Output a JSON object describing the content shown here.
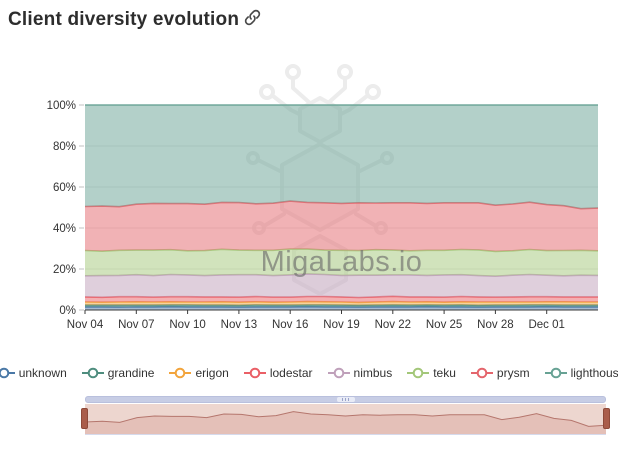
{
  "header": {
    "title": "Client diversity evolution",
    "link_icon": "link-icon"
  },
  "watermark": "MigaLabs.io",
  "colors": {
    "axis_line": "#3a3a3a",
    "grid_line": "#e6e6e6",
    "tick_label": "#333333",
    "scrollbar": "#c7cde5",
    "navigator_bg": "#edd6cf",
    "navigator_line": "#b5766d",
    "navigator_handle": "#aa5d4b",
    "logo": "#ececec"
  },
  "chart_data": {
    "type": "area",
    "stacking": "percent",
    "title": "Client diversity evolution",
    "xlabel": "",
    "ylabel": "",
    "ylim": [
      0,
      100
    ],
    "y_tick_labels": [
      "0%",
      "20%",
      "40%",
      "60%",
      "80%",
      "100%"
    ],
    "grid": "horizontal",
    "legend_position": "bottom",
    "x": [
      "Nov 04",
      "Nov 05",
      "Nov 06",
      "Nov 07",
      "Nov 08",
      "Nov 09",
      "Nov 10",
      "Nov 11",
      "Nov 12",
      "Nov 13",
      "Nov 14",
      "Nov 15",
      "Nov 16",
      "Nov 17",
      "Nov 18",
      "Nov 19",
      "Nov 20",
      "Nov 21",
      "Nov 22",
      "Nov 23",
      "Nov 24",
      "Nov 25",
      "Nov 26",
      "Nov 27",
      "Nov 28",
      "Nov 29",
      "Nov 30",
      "Dec 01",
      "Dec 02",
      "Dec 03",
      "Dec 04"
    ],
    "x_tick_every": 3,
    "x_tick_labels": [
      "Nov 04",
      "Nov 07",
      "Nov 10",
      "Nov 13",
      "Nov 16",
      "Nov 19",
      "Nov 22",
      "Nov 25",
      "Nov 28",
      "Dec 01"
    ],
    "series": [
      {
        "name": "unknown",
        "color": "#4a78a6",
        "values": [
          1.5,
          1.5,
          1.4,
          1.5,
          1.5,
          1.6,
          1.5,
          1.5,
          1.5,
          1.4,
          1.5,
          1.5,
          1.5,
          1.6,
          1.5,
          1.5,
          1.4,
          1.5,
          1.5,
          1.5,
          1.6,
          1.5,
          1.5,
          1.4,
          1.5,
          1.5,
          1.5,
          1.6,
          1.5,
          1.5,
          1.5
        ]
      },
      {
        "name": "grandine",
        "color": "#4e8d7e",
        "values": [
          0.9,
          0.9,
          1.0,
          0.9,
          0.9,
          0.9,
          1.0,
          0.9,
          0.9,
          0.9,
          1.0,
          0.9,
          0.9,
          0.9,
          1.0,
          0.9,
          0.9,
          0.9,
          1.0,
          0.9,
          0.9,
          0.9,
          1.0,
          0.9,
          0.9,
          0.9,
          1.0,
          0.9,
          0.9,
          0.9,
          0.9
        ]
      },
      {
        "name": "erigon",
        "color": "#f2a43c",
        "values": [
          1.5,
          1.4,
          1.5,
          1.6,
          1.5,
          1.5,
          1.4,
          1.5,
          1.6,
          1.5,
          1.5,
          1.4,
          1.5,
          1.6,
          1.5,
          1.5,
          1.4,
          1.5,
          1.6,
          1.5,
          1.5,
          1.4,
          1.5,
          1.6,
          1.5,
          1.5,
          1.4,
          1.5,
          1.6,
          1.5,
          1.5
        ]
      },
      {
        "name": "lodestar",
        "color": "#ea5f66",
        "values": [
          2.5,
          2.4,
          2.6,
          2.5,
          2.4,
          2.5,
          2.6,
          2.5,
          2.4,
          2.5,
          2.6,
          2.5,
          2.4,
          2.5,
          2.6,
          2.5,
          2.4,
          2.5,
          2.6,
          2.5,
          2.4,
          2.5,
          2.6,
          2.5,
          2.4,
          2.5,
          2.6,
          2.5,
          2.4,
          2.5,
          2.5
        ]
      },
      {
        "name": "nimbus",
        "color": "#bfa0ba",
        "values": [
          10.3,
          10.6,
          10.4,
          10.7,
          10.5,
          10.8,
          10.6,
          10.4,
          10.7,
          10.9,
          10.6,
          10.5,
          10.8,
          11.0,
          10.7,
          10.5,
          10.9,
          10.6,
          10.4,
          10.7,
          10.5,
          10.8,
          10.6,
          10.4,
          10.2,
          10.6,
          10.8,
          10.5,
          10.3,
          10.6,
          10.5
        ]
      },
      {
        "name": "teku",
        "color": "#a3c779",
        "values": [
          12.3,
          11.9,
          12.2,
          12.0,
          12.4,
          12.1,
          11.8,
          12.2,
          12.5,
          12.0,
          11.9,
          12.3,
          12.6,
          12.1,
          11.9,
          12.2,
          12.0,
          12.4,
          12.1,
          11.8,
          12.2,
          12.0,
          12.3,
          12.5,
          12.1,
          11.9,
          12.2,
          12.0,
          12.3,
          12.1,
          12.0
        ]
      },
      {
        "name": "prysm",
        "color": "#e4656c",
        "values": [
          21.5,
          22.0,
          21.3,
          22.4,
          22.8,
          22.5,
          23.0,
          22.6,
          22.9,
          23.2,
          22.7,
          23.0,
          23.4,
          22.8,
          23.1,
          22.9,
          23.3,
          22.8,
          23.1,
          23.4,
          22.9,
          23.2,
          22.8,
          23.0,
          22.5,
          22.8,
          23.1,
          22.4,
          21.9,
          20.3,
          20.8
        ]
      },
      {
        "name": "lighthouse",
        "color": "#67a294",
        "values": [
          49.5,
          49.3,
          49.6,
          48.4,
          48.0,
          48.1,
          48.1,
          48.4,
          47.5,
          47.6,
          48.2,
          47.9,
          46.9,
          47.5,
          47.7,
          48.0,
          47.7,
          47.8,
          47.7,
          47.7,
          48.0,
          47.7,
          47.7,
          47.7,
          48.9,
          48.3,
          47.4,
          48.6,
          49.1,
          50.6,
          50.3
        ]
      }
    ]
  }
}
